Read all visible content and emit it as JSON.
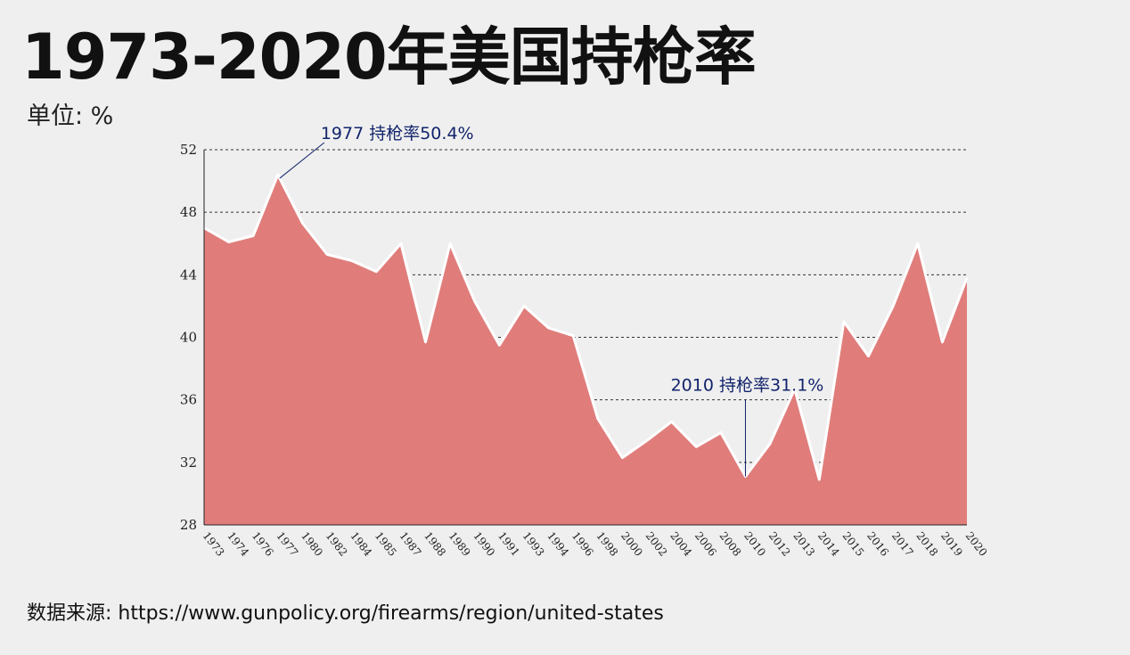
{
  "title": "1973-2020年美国持枪率",
  "unit_label": "单位: %",
  "source": "数据来源: https://www.gunpolicy.org/firearms/region/united-states",
  "colors": {
    "area": "#e07d7b",
    "line": "#ffffff",
    "annotation": "#12246b",
    "background": "#efefef"
  },
  "chart_data": {
    "type": "area",
    "title": "1973-2020年美国持枪率",
    "ylabel": "单位: %",
    "xlabel": "",
    "ylim": [
      28,
      52
    ],
    "yticks": [
      28,
      32,
      36,
      40,
      44,
      48,
      52
    ],
    "grid": "horizontal dashed",
    "categories": [
      "1973",
      "1974",
      "1976",
      "1977",
      "1980",
      "1982",
      "1984",
      "1985",
      "1987",
      "1988",
      "1989",
      "1990",
      "1991",
      "1993",
      "1994",
      "1996",
      "1998",
      "2000",
      "2002",
      "2004",
      "2006",
      "2008",
      "2010",
      "2012",
      "2013",
      "2014",
      "2015",
      "2016",
      "2017",
      "2018",
      "2019",
      "2020"
    ],
    "values": [
      47.0,
      46.1,
      46.5,
      50.4,
      47.3,
      45.3,
      44.9,
      44.2,
      46.0,
      39.7,
      46.0,
      42.3,
      39.5,
      42.0,
      40.6,
      40.1,
      34.8,
      32.3,
      33.4,
      34.6,
      33.0,
      33.9,
      31.1,
      33.2,
      36.7,
      30.9,
      41.0,
      38.8,
      42.0,
      46.0,
      39.7,
      43.8
    ],
    "annotations": [
      {
        "category": "1977",
        "value": 50.4,
        "text": "1977 持枪率50.4%"
      },
      {
        "category": "2010",
        "value": 31.1,
        "text": "2010 持枪率31.1%"
      }
    ]
  }
}
